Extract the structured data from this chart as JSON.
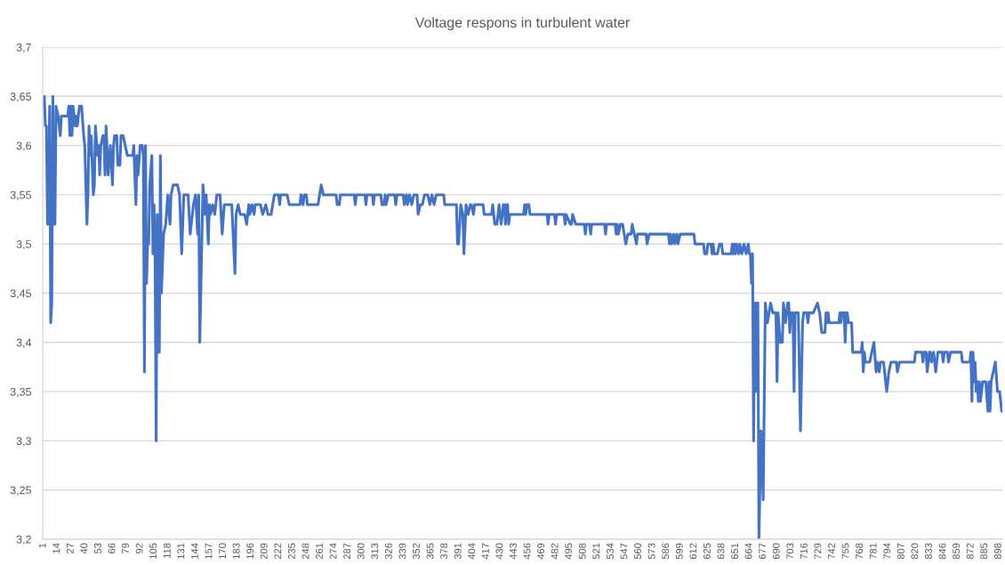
{
  "chart_data": {
    "type": "line",
    "title": "Voltage respons in turbulent water",
    "color": "#4472c4",
    "grid": "y",
    "xlim": [
      0.5,
      901.5
    ],
    "xticks": [
      1,
      14,
      27,
      40,
      53,
      66,
      79,
      92,
      105,
      118,
      131,
      144,
      157,
      170,
      183,
      196,
      209,
      222,
      235,
      248,
      261,
      274,
      287,
      300,
      313,
      326,
      339,
      352,
      365,
      378,
      391,
      404,
      417,
      430,
      443,
      456,
      469,
      482,
      495,
      508,
      521,
      534,
      547,
      560,
      573,
      586,
      599,
      612,
      625,
      638,
      651,
      664,
      677,
      690,
      703,
      716,
      729,
      742,
      755,
      768,
      781,
      794,
      807,
      820,
      833,
      846,
      859,
      872,
      885,
      898
    ],
    "ylim": [
      3.2,
      3.7
    ],
    "yticks": [
      {
        "value": 3.2,
        "label": "3,2"
      },
      {
        "value": 3.25,
        "label": "3,25"
      },
      {
        "value": 3.3,
        "label": "3,3"
      },
      {
        "value": 3.35,
        "label": "3,35"
      },
      {
        "value": 3.4,
        "label": "3,4"
      },
      {
        "value": 3.45,
        "label": "3,45"
      },
      {
        "value": 3.5,
        "label": "3,5"
      },
      {
        "value": 3.55,
        "label": "3,55"
      },
      {
        "value": 3.6,
        "label": "3,6"
      },
      {
        "value": 3.65,
        "label": "3,65"
      },
      {
        "value": 3.7,
        "label": "3,7"
      }
    ],
    "x": [
      1,
      2,
      3,
      4,
      5,
      6,
      7,
      8,
      9,
      10,
      11,
      12,
      13,
      15,
      17,
      18,
      24,
      25,
      26,
      27,
      28,
      29,
      31,
      32,
      33,
      34,
      35,
      37,
      39,
      40,
      42,
      43,
      44,
      45,
      46,
      48,
      49,
      50,
      52,
      53,
      54,
      55,
      57,
      58,
      59,
      60,
      62,
      64,
      66,
      67,
      68,
      70,
      71,
      73,
      74,
      76,
      78,
      80,
      85,
      86,
      87,
      88,
      89,
      90,
      92,
      94,
      95,
      96,
      97,
      98,
      99,
      100,
      101,
      103,
      104,
      105,
      106,
      107,
      108,
      109,
      110,
      111,
      112,
      114,
      116,
      118,
      120,
      121,
      123,
      127,
      129,
      131,
      133,
      137,
      139,
      142,
      144,
      146,
      147,
      148,
      151,
      153,
      154,
      156,
      157,
      158,
      160,
      162,
      164,
      167,
      169,
      171,
      178,
      181,
      182,
      184,
      186,
      190,
      192,
      194,
      195,
      197,
      199,
      200,
      205,
      207,
      210,
      212,
      215,
      218,
      222,
      223,
      224,
      230,
      232,
      242,
      243,
      245,
      246,
      248,
      249,
      259,
      262,
      264,
      276,
      277,
      279,
      280,
      293,
      294,
      295,
      303,
      304,
      305,
      310,
      311,
      312,
      318,
      319,
      321,
      322,
      323,
      325,
      331,
      332,
      333,
      339,
      340,
      342,
      343,
      345,
      347,
      349,
      352,
      353,
      355,
      357,
      359,
      362,
      364,
      366,
      368,
      370,
      377,
      378,
      389,
      390,
      391,
      393,
      395,
      396,
      398,
      400,
      402,
      403,
      405,
      406,
      414,
      415,
      422,
      423,
      425,
      427,
      429,
      431,
      433,
      434,
      435,
      436,
      437,
      438,
      439,
      452,
      453,
      454,
      455,
      457,
      458,
      474,
      475,
      476,
      481,
      482,
      483,
      490,
      491,
      492,
      496,
      497,
      498,
      501,
      509,
      510,
      511,
      514,
      515,
      516,
      528,
      529,
      530,
      538,
      539,
      540,
      541,
      543,
      545,
      548,
      550,
      553,
      554,
      556,
      558,
      559,
      567,
      568,
      570,
      586,
      588,
      589,
      590,
      591,
      593,
      594,
      596,
      597,
      599,
      612,
      613,
      621,
      622,
      624,
      625,
      628,
      629,
      630,
      631,
      634,
      636,
      638,
      639,
      647,
      648,
      649,
      650,
      651,
      652,
      654,
      655,
      657,
      659,
      661,
      663,
      664,
      665,
      666,
      667,
      668,
      669,
      670,
      671,
      672,
      673,
      675,
      677,
      679,
      681,
      684,
      686,
      689,
      690,
      691,
      693,
      695,
      696,
      698,
      700,
      701,
      702,
      703,
      705,
      706,
      707,
      710,
      712,
      714,
      715,
      718,
      719,
      720,
      724,
      728,
      730,
      732,
      735,
      736,
      737,
      738,
      739,
      748,
      749,
      750,
      751,
      753,
      754,
      755,
      756,
      757,
      760,
      761,
      769,
      770,
      771,
      772,
      773,
      777,
      779,
      781,
      783,
      784,
      786,
      787,
      790,
      791,
      793,
      795,
      797,
      802,
      803,
      805,
      819,
      820,
      826,
      827,
      828,
      830,
      831,
      833,
      834,
      835,
      837,
      839,
      841,
      845,
      846,
      847,
      850,
      851,
      853,
      863,
      864,
      871,
      872,
      873,
      874,
      875,
      876,
      877,
      878,
      879,
      880,
      881,
      883,
      886,
      888,
      889,
      890,
      891,
      893,
      895,
      897,
      899,
      901
    ],
    "values": [
      3.64,
      3.65,
      3.62,
      3.62,
      3.52,
      3.52,
      3.64,
      3.42,
      3.44,
      3.65,
      3.52,
      3.52,
      3.64,
      3.63,
      3.61,
      3.63,
      3.63,
      3.64,
      3.61,
      3.64,
      3.61,
      3.64,
      3.62,
      3.63,
      3.62,
      3.63,
      3.64,
      3.64,
      3.61,
      3.6,
      3.52,
      3.55,
      3.62,
      3.59,
      3.61,
      3.55,
      3.56,
      3.62,
      3.59,
      3.6,
      3.57,
      3.6,
      3.61,
      3.61,
      3.57,
      3.62,
      3.57,
      3.6,
      3.56,
      3.6,
      3.61,
      3.61,
      3.58,
      3.58,
      3.61,
      3.61,
      3.6,
      3.59,
      3.59,
      3.6,
      3.57,
      3.54,
      3.59,
      3.57,
      3.6,
      3.6,
      3.59,
      3.37,
      3.6,
      3.46,
      3.5,
      3.5,
      3.56,
      3.59,
      3.49,
      3.54,
      3.49,
      3.3,
      3.53,
      3.39,
      3.39,
      3.59,
      3.45,
      3.51,
      3.52,
      3.55,
      3.52,
      3.55,
      3.56,
      3.56,
      3.55,
      3.49,
      3.55,
      3.55,
      3.51,
      3.54,
      3.55,
      3.51,
      3.55,
      3.4,
      3.56,
      3.53,
      3.55,
      3.5,
      3.54,
      3.53,
      3.54,
      3.53,
      3.55,
      3.55,
      3.51,
      3.54,
      3.54,
      3.47,
      3.53,
      3.54,
      3.53,
      3.53,
      3.52,
      3.54,
      3.53,
      3.54,
      3.53,
      3.54,
      3.54,
      3.53,
      3.54,
      3.53,
      3.53,
      3.55,
      3.55,
      3.54,
      3.55,
      3.55,
      3.54,
      3.54,
      3.55,
      3.54,
      3.55,
      3.55,
      3.54,
      3.54,
      3.56,
      3.55,
      3.55,
      3.54,
      3.54,
      3.55,
      3.55,
      3.54,
      3.55,
      3.55,
      3.54,
      3.55,
      3.55,
      3.54,
      3.55,
      3.55,
      3.54,
      3.54,
      3.55,
      3.54,
      3.55,
      3.55,
      3.54,
      3.55,
      3.55,
      3.54,
      3.55,
      3.54,
      3.55,
      3.54,
      3.55,
      3.55,
      3.53,
      3.54,
      3.54,
      3.55,
      3.55,
      3.54,
      3.55,
      3.54,
      3.55,
      3.55,
      3.54,
      3.54,
      3.5,
      3.5,
      3.54,
      3.53,
      3.49,
      3.54,
      3.53,
      3.54,
      3.54,
      3.53,
      3.54,
      3.54,
      3.53,
      3.53,
      3.54,
      3.52,
      3.52,
      3.54,
      3.52,
      3.54,
      3.54,
      3.52,
      3.54,
      3.54,
      3.52,
      3.53,
      3.53,
      3.54,
      3.53,
      3.54,
      3.54,
      3.53,
      3.53,
      3.52,
      3.53,
      3.53,
      3.52,
      3.53,
      3.53,
      3.52,
      3.53,
      3.52,
      3.52,
      3.53,
      3.52,
      3.52,
      3.51,
      3.52,
      3.52,
      3.51,
      3.52,
      3.52,
      3.51,
      3.52,
      3.52,
      3.51,
      3.52,
      3.51,
      3.52,
      3.52,
      3.5,
      3.51,
      3.51,
      3.52,
      3.51,
      3.5,
      3.51,
      3.51,
      3.5,
      3.51,
      3.51,
      3.51,
      3.5,
      3.51,
      3.5,
      3.51,
      3.5,
      3.51,
      3.5,
      3.51,
      3.51,
      3.5,
      3.5,
      3.49,
      3.49,
      3.5,
      3.5,
      3.49,
      3.5,
      3.49,
      3.49,
      3.5,
      3.5,
      3.49,
      3.49,
      3.5,
      3.49,
      3.5,
      3.49,
      3.5,
      3.49,
      3.5,
      3.49,
      3.5,
      3.49,
      3.5,
      3.49,
      3.49,
      3.46,
      3.49,
      3.3,
      3.44,
      3.35,
      3.44,
      3.44,
      3.2,
      3.31,
      3.24,
      3.44,
      3.42,
      3.44,
      3.43,
      3.43,
      3.36,
      3.43,
      3.4,
      3.4,
      3.44,
      3.42,
      3.44,
      3.44,
      3.41,
      3.43,
      3.43,
      3.35,
      3.43,
      3.43,
      3.31,
      3.42,
      3.43,
      3.43,
      3.42,
      3.43,
      3.43,
      3.44,
      3.43,
      3.41,
      3.41,
      3.43,
      3.42,
      3.43,
      3.42,
      3.42,
      3.43,
      3.42,
      3.43,
      3.43,
      3.4,
      3.43,
      3.43,
      3.42,
      3.42,
      3.39,
      3.39,
      3.4,
      3.37,
      3.39,
      3.38,
      3.38,
      3.39,
      3.4,
      3.37,
      3.38,
      3.37,
      3.38,
      3.38,
      3.37,
      3.35,
      3.37,
      3.38,
      3.38,
      3.37,
      3.38,
      3.38,
      3.39,
      3.39,
      3.38,
      3.39,
      3.39,
      3.37,
      3.39,
      3.39,
      3.38,
      3.39,
      3.37,
      3.39,
      3.39,
      3.38,
      3.39,
      3.39,
      3.38,
      3.39,
      3.39,
      3.38,
      3.38,
      3.39,
      3.34,
      3.39,
      3.36,
      3.38,
      3.35,
      3.36,
      3.34,
      3.36,
      3.34,
      3.36,
      3.36,
      3.33,
      3.36,
      3.33,
      3.36,
      3.37,
      3.38,
      3.35,
      3.35,
      3.33
    ]
  }
}
